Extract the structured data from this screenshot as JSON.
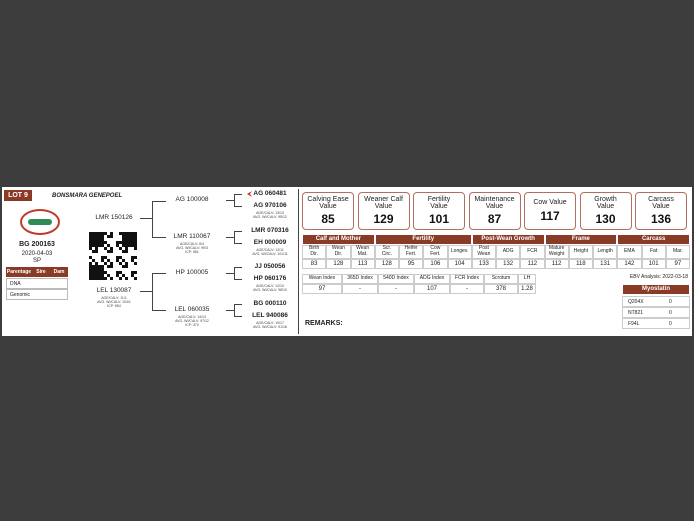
{
  "header": {
    "lot": "LOT 9",
    "breeder": "BONSMARA GENEPOEL"
  },
  "animal": {
    "id": "BG 200163",
    "birth_date": "2020-04-03",
    "type": "SP"
  },
  "parentage": {
    "headers": [
      "Parentage",
      "Sire",
      "Dam"
    ],
    "rows": [
      "DNA",
      "Genomic"
    ]
  },
  "pedigree": {
    "sire": {
      "id": "LMR 150126",
      "details": []
    },
    "dam": {
      "id": "LEL 130087",
      "details": [
        "AGE/CALV: 11/1",
        "AVG. WI/CALV: 104/1",
        "ICP: 654"
      ]
    },
    "grandparents": [
      {
        "id": "AG 100008",
        "details": []
      },
      {
        "id": "LMR 110067",
        "details": [
          "AGE/CALV: 6/4",
          "AVG. WI/CALV: 99/3",
          "ICP: 561"
        ]
      },
      {
        "id": "HP 100005",
        "details": []
      },
      {
        "id": "LEL 060035",
        "details": [
          "AGE/CALV: 14/13",
          "AVG. WI/CALV: 97/12",
          "ICP: 370"
        ]
      }
    ],
    "great_grandparents": [
      {
        "id": "AG 060481",
        "details": []
      },
      {
        "id": "AG 970106",
        "details": [
          "AGE/CALV: 13/13",
          "AVG. WI/CALV: 95/12"
        ]
      },
      {
        "id": "LMR 070316",
        "details": []
      },
      {
        "id": "EH 000009",
        "details": [
          "AGE/CALV: 12/11",
          "AVG. WI/CALV: 101/11"
        ]
      },
      {
        "id": "JJ 050056",
        "details": []
      },
      {
        "id": "HP 060176",
        "details": [
          "AGE/CALV: 12/10",
          "AVG. WI/CALV: 98/10"
        ]
      },
      {
        "id": "BG 000110",
        "details": []
      },
      {
        "id": "LEL 940086",
        "details": [
          "AGE/CALV: 19/17",
          "AVG. WI/CALV: 91/18"
        ]
      }
    ]
  },
  "values": [
    {
      "label": [
        "Calving Ease",
        "Value"
      ],
      "value": 85
    },
    {
      "label": [
        "Weaner Calf",
        "Value"
      ],
      "value": 129
    },
    {
      "label": [
        "Fertility",
        "Value"
      ],
      "value": 101
    },
    {
      "label": [
        "Maintenance",
        "Value"
      ],
      "value": 87
    },
    {
      "label": [
        "Cow Value"
      ],
      "value": 117
    },
    {
      "label": [
        "Growth",
        "Value"
      ],
      "value": 130
    },
    {
      "label": [
        "Carcass",
        "Value"
      ],
      "value": 136
    }
  ],
  "ebv_groups": [
    {
      "name": "Calf and Mother",
      "columns": [
        {
          "label": [
            "Birth",
            "Dir."
          ],
          "value": 83
        },
        {
          "label": [
            "Wean",
            "Dir."
          ],
          "value": 128
        },
        {
          "label": [
            "Wean",
            "Mat."
          ],
          "value": 113
        }
      ]
    },
    {
      "name": "Fertility",
      "columns": [
        {
          "label": [
            "Scr.",
            "Circ."
          ],
          "value": 128
        },
        {
          "label": [
            "Heifer",
            "Fert."
          ],
          "value": 95
        },
        {
          "label": [
            "Cow",
            "Fert."
          ],
          "value": 106
        },
        {
          "label": [
            "Longev."
          ],
          "value": 104
        }
      ]
    },
    {
      "name": "Post-Wean Growth",
      "columns": [
        {
          "label": [
            "Post",
            "Wean"
          ],
          "value": 133
        },
        {
          "label": [
            "ADG"
          ],
          "value": 132
        },
        {
          "label": [
            "FCR"
          ],
          "value": 112
        }
      ]
    },
    {
      "name": "Frame",
      "columns": [
        {
          "label": [
            "Mature",
            "Weight"
          ],
          "value": 112
        },
        {
          "label": [
            "Height"
          ],
          "value": 118
        },
        {
          "label": [
            "Length"
          ],
          "value": 131
        }
      ]
    },
    {
      "name": "Carcass",
      "columns": [
        {
          "label": [
            "EMA"
          ],
          "value": 142
        },
        {
          "label": [
            "Fat"
          ],
          "value": 101
        },
        {
          "label": [
            "Mar."
          ],
          "value": 97
        }
      ]
    }
  ],
  "index_table": [
    {
      "label": "Wean Index",
      "value": 97
    },
    {
      "label": "365D Index",
      "value": "-"
    },
    {
      "label": "540D Index",
      "value": "-"
    },
    {
      "label": "ADG Index",
      "value": 107
    },
    {
      "label": "FCR Index",
      "value": "-"
    },
    {
      "label": "Scrotum",
      "value": 378
    },
    {
      "label": "LH",
      "value": 1.28
    }
  ],
  "remarks": "REMARKS:",
  "ebv_analysis": "EBV Analysis: 2022-03-18",
  "myostatin": {
    "title": "Myostatin",
    "rows": [
      {
        "marker": "Q204X",
        "value": 0
      },
      {
        "marker": "NT821",
        "value": 0
      },
      {
        "marker": "F94L",
        "value": 0
      }
    ]
  }
}
